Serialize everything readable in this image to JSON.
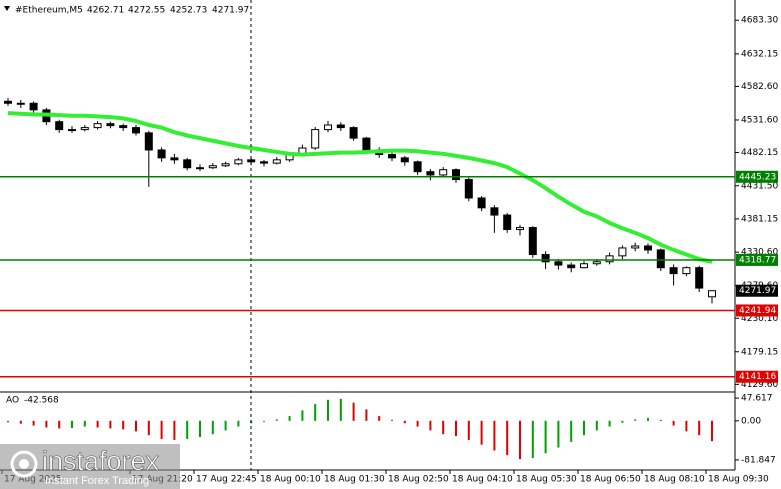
{
  "chart_data": [
    {
      "type": "candlestick",
      "title": "#Ethereum,M5",
      "categories": [
        "17 Aug 2025",
        null,
        null,
        null,
        null,
        null,
        null,
        null,
        null,
        null,
        "17 Aug 21:20",
        null,
        null,
        null,
        null,
        "17 Aug 22:45",
        null,
        null,
        null,
        null,
        "18 Aug 00:10",
        null,
        null,
        null,
        null,
        "18 Aug 01:30",
        null,
        null,
        null,
        null,
        "18 Aug 02:50",
        null,
        null,
        null,
        null,
        "18 Aug 04:10",
        null,
        null,
        null,
        null,
        "18 Aug 05:30",
        null,
        null,
        null,
        null,
        "18 Aug 06:50",
        null,
        null,
        null,
        null,
        "18 Aug 08:10",
        null,
        null,
        null,
        null,
        "18 Aug 09:30"
      ],
      "open": [
        4560,
        4557,
        4557,
        4547,
        4529,
        4517,
        4517,
        4520,
        4526,
        4523,
        4520,
        4512,
        4486,
        4474,
        4471,
        4459,
        4459,
        4462,
        4465,
        4471,
        4468,
        4466,
        4471,
        4479,
        4489,
        4517,
        4524,
        4520,
        4504,
        4486,
        4479,
        4474,
        4468,
        4453,
        4448,
        4456,
        4441,
        4413,
        4398,
        4387,
        4365,
        4368,
        4327,
        4316,
        4311,
        4307,
        4313,
        4316,
        4325,
        4337,
        4340,
        4334,
        4307,
        4298,
        4307,
        4262.71
      ],
      "high": [
        4565,
        4562,
        4560,
        4550,
        4532,
        4522,
        4524,
        4530,
        4529,
        4526,
        4524,
        4515,
        4490,
        4480,
        4474,
        4464,
        4466,
        4468,
        4474,
        4474,
        4471,
        4475,
        4483,
        4494,
        4521,
        4530,
        4528,
        4522,
        4506,
        4490,
        4482,
        4477,
        4470,
        4457,
        4460,
        4458,
        4444,
        4416,
        4402,
        4390,
        4372,
        4370,
        4332,
        4320,
        4315,
        4317,
        4320,
        4330,
        4341,
        4345,
        4344,
        4336,
        4312,
        4309,
        4310,
        4272.55
      ],
      "low": [
        4553,
        4550,
        4543,
        4524,
        4512,
        4512,
        4514,
        4517,
        4519,
        4515,
        4508,
        4430,
        4468,
        4465,
        4455,
        4454,
        4457,
        4460,
        4463,
        4463,
        4461,
        4464,
        4468,
        4476,
        4486,
        4513,
        4515,
        4500,
        4482,
        4474,
        4469,
        4462,
        4448,
        4440,
        4444,
        4436,
        4408,
        4393,
        4360,
        4360,
        4356,
        4322,
        4305,
        4304,
        4300,
        4306,
        4310,
        4312,
        4320,
        4332,
        4328,
        4302,
        4280,
        4294,
        4270,
        4252.73
      ],
      "close": [
        4557,
        4557,
        4547,
        4529,
        4517,
        4517,
        4520,
        4526,
        4523,
        4520,
        4512,
        4486,
        4474,
        4471,
        4459,
        4459,
        4462,
        4465,
        4471,
        4468,
        4466,
        4471,
        4479,
        4489,
        4517,
        4524,
        4520,
        4504,
        4486,
        4479,
        4474,
        4468,
        4453,
        4448,
        4456,
        4441,
        4413,
        4398,
        4387,
        4365,
        4368,
        4327,
        4316,
        4311,
        4307,
        4313,
        4316,
        4325,
        4337,
        4340,
        4334,
        4307,
        4298,
        4307,
        4276,
        4271.97
      ],
      "moving_average": {
        "color": "#33ee33",
        "values": [
          4542,
          4541,
          4540,
          4540,
          4539,
          4538,
          4538,
          4537,
          4536,
          4534,
          4530,
          4524,
          4520,
          4513,
          4508,
          4504,
          4500,
          4496,
          4492,
          4489,
          4486,
          4483,
          4480,
          4479,
          4480,
          4481,
          4482,
          4482,
          4483,
          4484,
          4485,
          4485,
          4484,
          4482,
          4480,
          4477,
          4474,
          4470,
          4466,
          4460,
          4450,
          4440,
          4428,
          4415,
          4403,
          4392,
          4385,
          4375,
          4367,
          4360,
          4352,
          4342,
          4334,
          4327,
          4320,
          4316
        ]
      },
      "levels": [
        {
          "value": 4445.23,
          "color": "#008000"
        },
        {
          "value": 4318.77,
          "color": "#008000"
        },
        {
          "value": 4241.94,
          "color": "#e00000"
        },
        {
          "value": 4141.16,
          "color": "#e00000"
        }
      ],
      "ylim": [
        4121,
        4711
      ],
      "yticks": [
        {
          "value": 4683.3,
          "label": "4683.30"
        },
        {
          "value": 4632.15,
          "label": "4632.15"
        },
        {
          "value": 4582.6,
          "label": "4582.60"
        },
        {
          "value": 4531.6,
          "label": "4531.60"
        },
        {
          "value": 4482.15,
          "label": "4482.15"
        },
        {
          "value": 4431.5,
          "label": "4431.50"
        },
        {
          "value": 4381.15,
          "label": "4381.15"
        },
        {
          "value": 4330.6,
          "label": "4330.60"
        },
        {
          "value": 4279.6,
          "label": "4279.60"
        },
        {
          "value": 4230.1,
          "label": "4230.10"
        },
        {
          "value": 4179.15,
          "label": "4179.15"
        },
        {
          "value": 4129.6,
          "label": "4129.60"
        }
      ]
    },
    {
      "type": "histogram",
      "title": "AO",
      "values": [
        -3,
        -6,
        -10,
        -14,
        -16,
        -15,
        -12,
        -14,
        -16,
        -18,
        -22,
        -30,
        -38,
        -40,
        -38,
        -34,
        -28,
        -20,
        -12,
        -5,
        -2,
        3,
        10,
        22,
        35,
        44,
        46,
        38,
        24,
        10,
        2,
        -5,
        -12,
        -20,
        -28,
        -32,
        -40,
        -50,
        -62,
        -72,
        -80,
        -78,
        -68,
        -56,
        -44,
        -30,
        -20,
        -12,
        -4,
        3,
        6,
        2,
        -10,
        -22,
        -30,
        -42.568
      ],
      "up_color": "#00a000",
      "down_color": "#e00000",
      "ylim": [
        -103,
        52
      ],
      "yticks": [
        47.617,
        {
          "value": 0,
          "label": "0.00"
        },
        -81.847
      ]
    }
  ],
  "logo": {
    "name": "instaforex",
    "tagline": "Instant Forex Trading"
  }
}
